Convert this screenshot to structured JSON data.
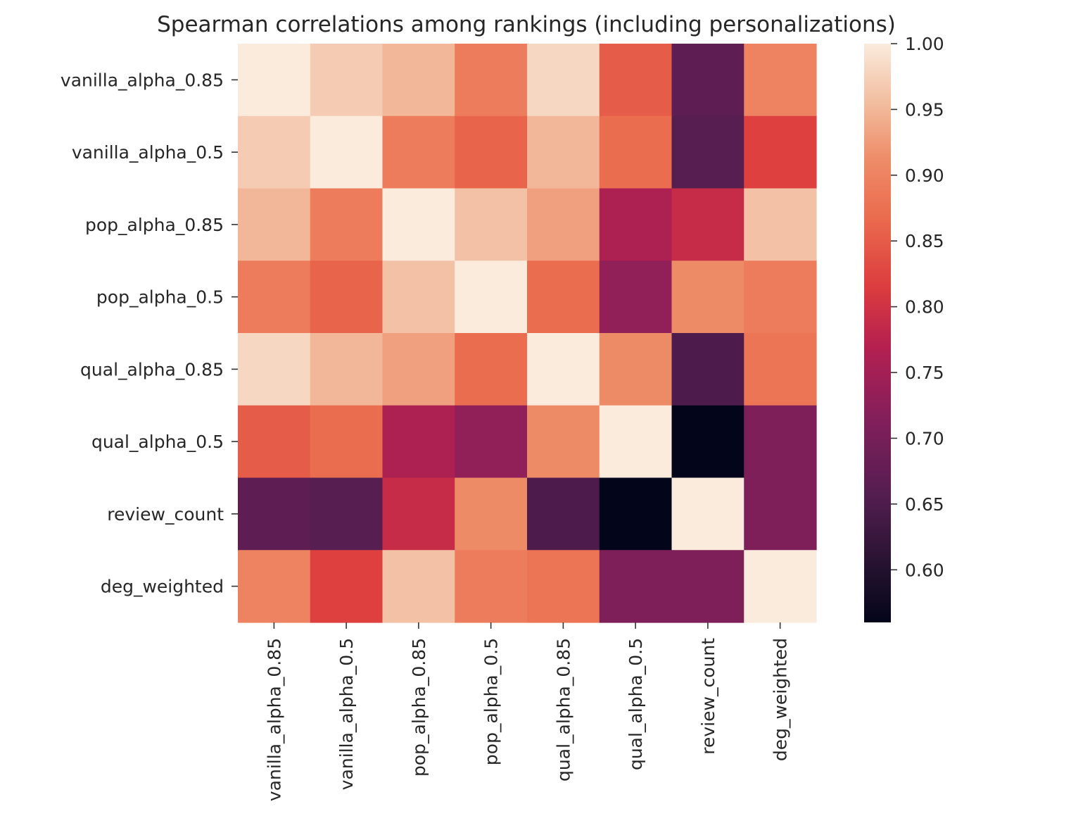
{
  "chart_data": {
    "type": "heatmap",
    "title": "Spearman correlations among rankings (including personalizations)",
    "xlabel": "",
    "ylabel": "",
    "labels": [
      "vanilla_alpha_0.85",
      "vanilla_alpha_0.5",
      "pop_alpha_0.85",
      "pop_alpha_0.5",
      "qual_alpha_0.85",
      "qual_alpha_0.5",
      "review_count",
      "deg_weighted"
    ],
    "matrix": [
      [
        1.0,
        0.97,
        0.95,
        0.89,
        0.98,
        0.85,
        0.67,
        0.9
      ],
      [
        0.97,
        1.0,
        0.89,
        0.86,
        0.95,
        0.87,
        0.66,
        0.82
      ],
      [
        0.95,
        0.89,
        1.0,
        0.96,
        0.93,
        0.76,
        0.79,
        0.96
      ],
      [
        0.89,
        0.86,
        0.96,
        1.0,
        0.87,
        0.73,
        0.91,
        0.89
      ],
      [
        0.98,
        0.95,
        0.93,
        0.87,
        1.0,
        0.91,
        0.65,
        0.88
      ],
      [
        0.85,
        0.87,
        0.76,
        0.73,
        0.91,
        1.0,
        0.56,
        0.71
      ],
      [
        0.67,
        0.66,
        0.79,
        0.91,
        0.65,
        0.56,
        1.0,
        0.71
      ],
      [
        0.9,
        0.82,
        0.96,
        0.89,
        0.88,
        0.71,
        0.71,
        1.0
      ]
    ],
    "colorbar": {
      "min": 0.56,
      "max": 1.0,
      "ticks": [
        1.0,
        0.95,
        0.9,
        0.85,
        0.8,
        0.75,
        0.7,
        0.65,
        0.6
      ],
      "tick_labels": [
        "1.00",
        "0.95",
        "0.90",
        "0.85",
        "0.80",
        "0.75",
        "0.70",
        "0.65",
        "0.60"
      ]
    },
    "colormap": "rocket",
    "grid": false,
    "legend": "colorbar-right"
  }
}
